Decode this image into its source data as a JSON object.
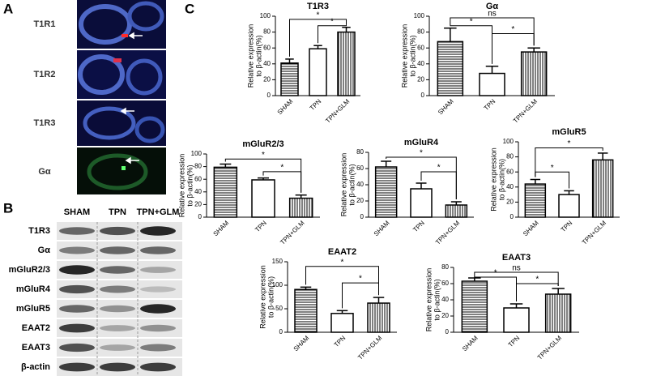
{
  "panels": {
    "A": {
      "label": "A",
      "rows": [
        "T1R1",
        "T1R2",
        "T1R3",
        "Gα"
      ]
    },
    "B": {
      "label": "B",
      "columns": [
        "SHAM",
        "TPN",
        "TPN+GLM"
      ],
      "rows": [
        "T1R3",
        "Gα",
        "mGluR2/3",
        "mGluR4",
        "mGluR5",
        "EAAT2",
        "EAAT3",
        "β-actin"
      ]
    },
    "C": {
      "label": "C"
    }
  },
  "chart_data": [
    {
      "type": "bar",
      "title": "T1R3",
      "categories": [
        "SHAM",
        "TPN",
        "TPN+GLM"
      ],
      "values": [
        41,
        59,
        80
      ],
      "errors": [
        5,
        4,
        6
      ],
      "ylim": [
        0,
        100
      ],
      "yticks": [
        0,
        20,
        40,
        60,
        80,
        100
      ],
      "ylabel": [
        "Relative expression",
        "to β-actin(%)"
      ],
      "annotations": [
        "*",
        "*"
      ],
      "color": "#000000",
      "patterns": [
        "horizontal",
        "none",
        "vertical"
      ]
    },
    {
      "type": "bar",
      "title": "Gα",
      "categories": [
        "SHAM",
        "TPN",
        "TPN+GLM"
      ],
      "values": [
        68,
        28,
        55
      ],
      "errors": [
        17,
        9,
        5
      ],
      "ylim": [
        0,
        100
      ],
      "yticks": [
        0,
        20,
        40,
        60,
        80,
        100
      ],
      "ylabel": [
        "Relative expression",
        "to β-actin(%)"
      ],
      "annotations": [
        "ns",
        "*",
        "*"
      ],
      "color": "#000000",
      "patterns": [
        "horizontal",
        "none",
        "vertical"
      ]
    },
    {
      "type": "bar",
      "title": "mGluR2/3",
      "categories": [
        "SHAM",
        "TPN",
        "TPN+GLM"
      ],
      "values": [
        79,
        59,
        30
      ],
      "errors": [
        5,
        3,
        5
      ],
      "ylim": [
        0,
        100
      ],
      "yticks": [
        0,
        20,
        40,
        60,
        80,
        100
      ],
      "ylabel": [
        "Relative expression",
        "to β-actin(%)"
      ],
      "annotations": [
        "*",
        "*"
      ],
      "color": "#000000",
      "patterns": [
        "horizontal",
        "none",
        "vertical"
      ]
    },
    {
      "type": "bar",
      "title": "mGluR4",
      "categories": [
        "SHAM",
        "TPN",
        "TPN+GLM"
      ],
      "values": [
        62,
        35,
        15
      ],
      "errors": [
        7,
        7,
        4
      ],
      "ylim": [
        0,
        80
      ],
      "yticks": [
        0,
        20,
        40,
        60,
        80
      ],
      "ylabel": [
        "Relative expression",
        "to β-actin(%)"
      ],
      "annotations": [
        "*",
        "*"
      ],
      "color": "#000000",
      "patterns": [
        "horizontal",
        "none",
        "vertical"
      ]
    },
    {
      "type": "bar",
      "title": "mGluR5",
      "categories": [
        "SHAM",
        "TPN",
        "TPN+GLM"
      ],
      "values": [
        44,
        30,
        76
      ],
      "errors": [
        6,
        5,
        9
      ],
      "ylim": [
        0,
        100
      ],
      "yticks": [
        0,
        20,
        40,
        60,
        80,
        100
      ],
      "ylabel": [
        "Relative expression",
        "to β-actin(%)"
      ],
      "annotations": [
        "*",
        "*"
      ],
      "color": "#000000",
      "patterns": [
        "horizontal",
        "none",
        "vertical"
      ]
    },
    {
      "type": "bar",
      "title": "EAAT2",
      "categories": [
        "SHAM",
        "TPN",
        "TPN+GLM"
      ],
      "values": [
        91,
        40,
        62
      ],
      "errors": [
        5,
        6,
        12
      ],
      "ylim": [
        0,
        150
      ],
      "yticks": [
        0,
        50,
        100,
        150
      ],
      "ylabel": [
        "Relative expression",
        "to β-actin(%)"
      ],
      "annotations": [
        "*",
        "*"
      ],
      "color": "#000000",
      "patterns": [
        "horizontal",
        "none",
        "vertical"
      ]
    },
    {
      "type": "bar",
      "title": "EAAT3",
      "categories": [
        "SHAM",
        "TPN",
        "TPN+GLM"
      ],
      "values": [
        63,
        30,
        47
      ],
      "errors": [
        4,
        5,
        7
      ],
      "ylim": [
        0,
        80
      ],
      "yticks": [
        0,
        20,
        40,
        60,
        80
      ],
      "ylabel": [
        "Relative expression",
        "to β-actin(%)"
      ],
      "annotations": [
        "ns",
        "*",
        "*"
      ],
      "color": "#000000",
      "patterns": [
        "horizontal",
        "none",
        "vertical"
      ]
    }
  ]
}
